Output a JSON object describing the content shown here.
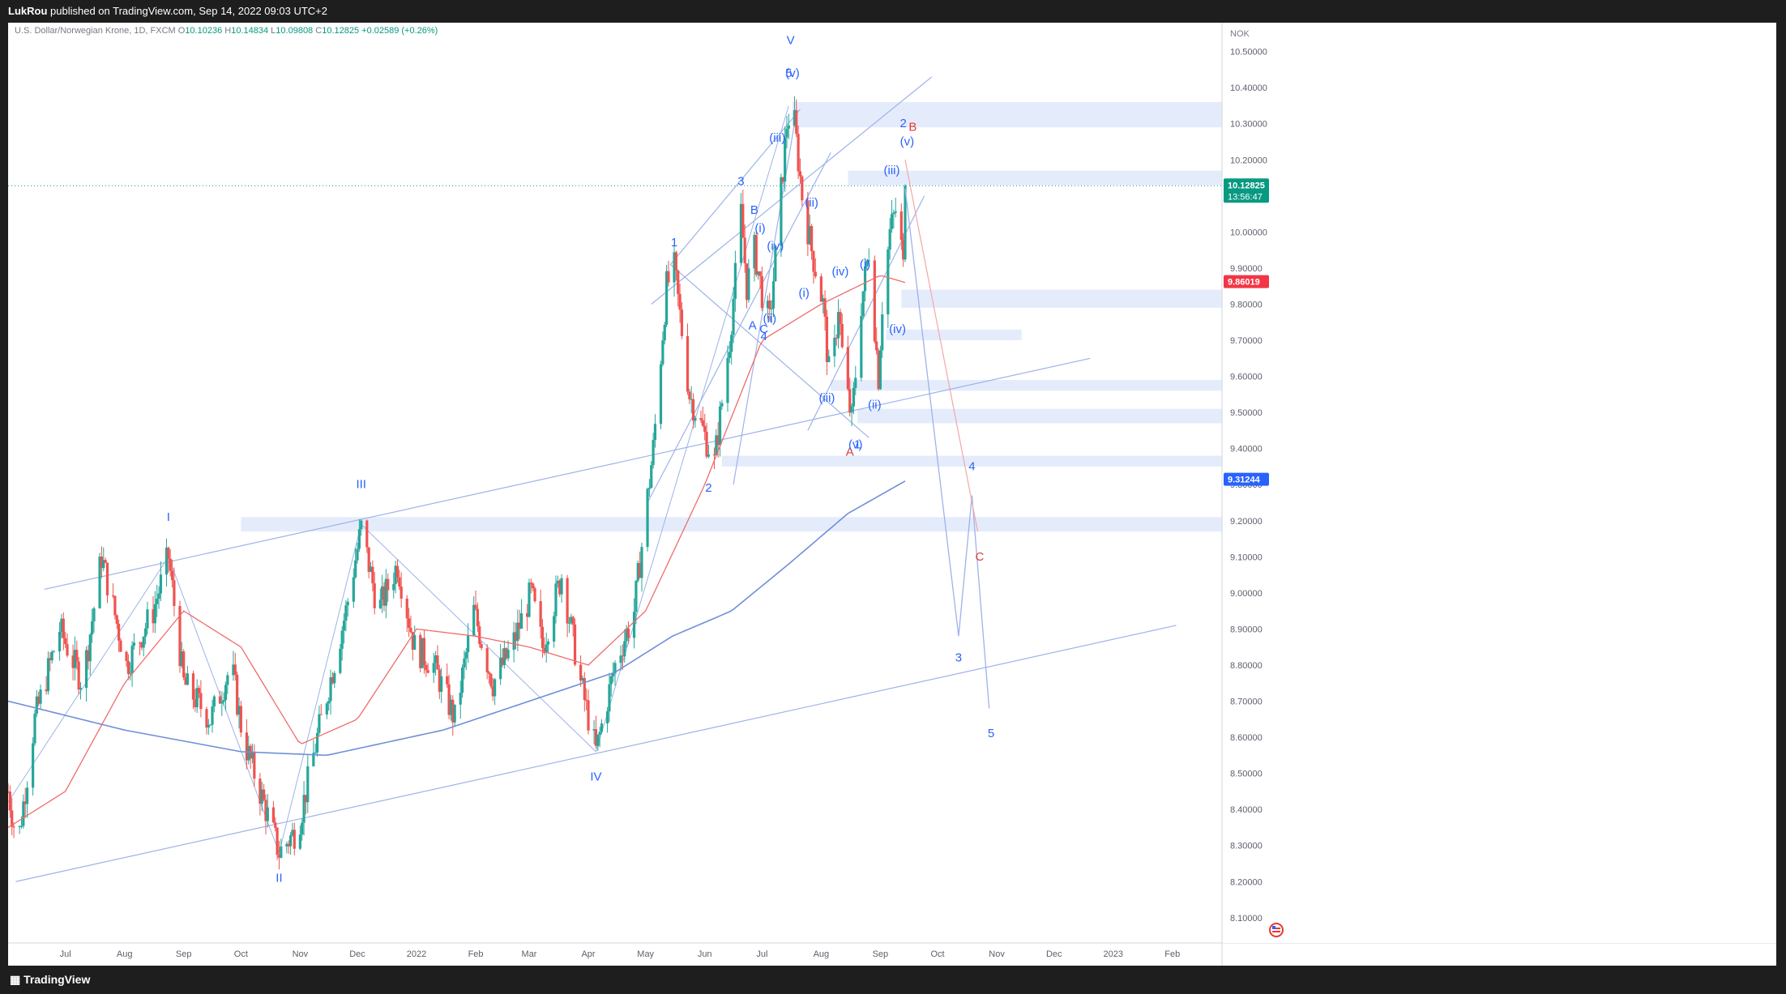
{
  "header": {
    "author": "LukRou",
    "published": "published on TradingView.com, Sep 14, 2022 09:03 UTC+2"
  },
  "legend": {
    "symbol": "U.S. Dollar/Norwegian Krone, 1D, FXCM",
    "o_label": "O",
    "o": "10.10236",
    "h_label": "H",
    "h": "10.14834",
    "l_label": "L",
    "l": "10.09808",
    "c_label": "C",
    "c": "10.12825",
    "chg": "+0.02589 (+0.26%)"
  },
  "footer": {
    "logo": "TradingView"
  },
  "colors": {
    "up": "#26a69a",
    "down": "#ef5350",
    "ma_red": "#f06b6b",
    "ma_blue": "#6f8fd8",
    "wave": "#2962ff",
    "corr": "#e53935"
  },
  "chart_data": {
    "type": "candlestick",
    "currency": "NOK",
    "ylim": [
      8.03,
      10.58
    ],
    "y_ticks": [
      "10.50000",
      "10.40000",
      "10.30000",
      "10.20000",
      "10.10000",
      "10.00000",
      "9.90000",
      "9.80000",
      "9.70000",
      "9.60000",
      "9.50000",
      "9.40000",
      "9.30000",
      "9.20000",
      "9.10000",
      "9.00000",
      "8.90000",
      "8.80000",
      "8.70000",
      "8.60000",
      "8.50000",
      "8.40000",
      "8.30000",
      "8.20000",
      "8.10000"
    ],
    "x_ticks": [
      "Jul",
      "Aug",
      "Sep",
      "Oct",
      "Nov",
      "Dec",
      "2022",
      "Feb",
      "Mar",
      "Apr",
      "May",
      "Jun",
      "Jul",
      "Aug",
      "Sep",
      "Oct",
      "Nov",
      "Dec",
      "2023",
      "Feb"
    ],
    "x_range": [
      "2021-06-01",
      "2023-02-27"
    ],
    "price_labels": [
      {
        "value": "10.12825",
        "time": "13:56:47",
        "color": "#089981"
      },
      {
        "value": "9.86019",
        "color": "#f23645"
      },
      {
        "value": "9.31244",
        "color": "#2962ff"
      }
    ],
    "price_series_anchors": [
      [
        "2021-06-01",
        8.45
      ],
      [
        "2021-06-06",
        8.3
      ],
      [
        "2021-06-15",
        8.65
      ],
      [
        "2021-06-28",
        8.9
      ],
      [
        "2021-07-10",
        8.75
      ],
      [
        "2021-07-20",
        9.1
      ],
      [
        "2021-08-02",
        8.8
      ],
      [
        "2021-08-16",
        8.95
      ],
      [
        "2021-08-24",
        9.1
      ],
      [
        "2021-09-01",
        8.75
      ],
      [
        "2021-09-15",
        8.65
      ],
      [
        "2021-09-26",
        8.8
      ],
      [
        "2021-10-02",
        8.6
      ],
      [
        "2021-10-14",
        8.4
      ],
      [
        "2021-10-21",
        8.28
      ],
      [
        "2021-10-31",
        8.35
      ],
      [
        "2021-11-10",
        8.6
      ],
      [
        "2021-11-25",
        8.95
      ],
      [
        "2021-12-03",
        9.18
      ],
      [
        "2021-12-12",
        8.95
      ],
      [
        "2021-12-22",
        9.08
      ],
      [
        "2021-12-31",
        8.85
      ],
      [
        "2022-01-10",
        8.8
      ],
      [
        "2022-01-21",
        8.65
      ],
      [
        "2022-01-31",
        8.95
      ],
      [
        "2022-02-10",
        8.75
      ],
      [
        "2022-02-20",
        8.85
      ],
      [
        "2022-03-02",
        9.0
      ],
      [
        "2022-03-08",
        8.85
      ],
      [
        "2022-03-18",
        9.05
      ],
      [
        "2022-03-28",
        8.75
      ],
      [
        "2022-04-05",
        8.56
      ],
      [
        "2022-04-15",
        8.8
      ],
      [
        "2022-04-25",
        8.95
      ],
      [
        "2022-05-05",
        9.4
      ],
      [
        "2022-05-12",
        9.85
      ],
      [
        "2022-05-16",
        9.9
      ],
      [
        "2022-05-24",
        9.55
      ],
      [
        "2022-05-31",
        9.45
      ],
      [
        "2022-06-06",
        9.36
      ],
      [
        "2022-06-14",
        9.7
      ],
      [
        "2022-06-20",
        10.05
      ],
      [
        "2022-06-23",
        9.85
      ],
      [
        "2022-06-27",
        9.95
      ],
      [
        "2022-07-02",
        9.8
      ],
      [
        "2022-07-05",
        9.75
      ],
      [
        "2022-07-10",
        10.05
      ],
      [
        "2022-07-14",
        10.3
      ],
      [
        "2022-07-17",
        10.35
      ],
      [
        "2022-07-22",
        10.1
      ],
      [
        "2022-07-27",
        9.95
      ],
      [
        "2022-08-02",
        9.8
      ],
      [
        "2022-08-06",
        9.55
      ],
      [
        "2022-08-10",
        9.8
      ],
      [
        "2022-08-13",
        9.6
      ],
      [
        "2022-08-17",
        9.48
      ],
      [
        "2022-08-22",
        9.8
      ],
      [
        "2022-08-26",
        9.95
      ],
      [
        "2022-08-31",
        9.6
      ],
      [
        "2022-09-02",
        9.8
      ],
      [
        "2022-09-06",
        10.0
      ],
      [
        "2022-09-10",
        10.08
      ],
      [
        "2022-09-13",
        9.9
      ],
      [
        "2022-09-14",
        10.12825
      ]
    ],
    "ma_red_anchors": [
      [
        "2021-06-01",
        8.35
      ],
      [
        "2021-07-01",
        8.45
      ],
      [
        "2021-08-01",
        8.75
      ],
      [
        "2021-09-01",
        8.95
      ],
      [
        "2021-10-01",
        8.85
      ],
      [
        "2021-11-01",
        8.58
      ],
      [
        "2021-12-01",
        8.65
      ],
      [
        "2022-01-01",
        8.9
      ],
      [
        "2022-02-01",
        8.88
      ],
      [
        "2022-03-01",
        8.85
      ],
      [
        "2022-04-01",
        8.8
      ],
      [
        "2022-05-01",
        8.95
      ],
      [
        "2022-06-01",
        9.3
      ],
      [
        "2022-07-01",
        9.7
      ],
      [
        "2022-08-01",
        9.8
      ],
      [
        "2022-09-01",
        9.88
      ],
      [
        "2022-09-14",
        9.86
      ]
    ],
    "ma_blue_anchors": [
      [
        "2021-06-01",
        8.7
      ],
      [
        "2021-08-01",
        8.62
      ],
      [
        "2021-10-01",
        8.56
      ],
      [
        "2021-11-15",
        8.55
      ],
      [
        "2022-01-15",
        8.62
      ],
      [
        "2022-03-01",
        8.7
      ],
      [
        "2022-04-15",
        8.78
      ],
      [
        "2022-05-15",
        8.88
      ],
      [
        "2022-06-15",
        8.95
      ],
      [
        "2022-07-15",
        9.08
      ],
      [
        "2022-08-15",
        9.22
      ],
      [
        "2022-09-14",
        9.31
      ]
    ],
    "projection": [
      [
        "2022-09-14",
        10.12
      ],
      [
        "2022-10-12",
        8.88
      ],
      [
        "2022-10-19",
        9.27
      ],
      [
        "2022-10-28",
        8.68
      ]
    ],
    "correction_projection": [
      [
        "2022-09-14",
        10.2
      ],
      [
        "2022-10-22",
        9.17
      ]
    ],
    "zones": [
      {
        "from": "2022-07-17",
        "to": "2023-02-27",
        "low": 10.29,
        "high": 10.36
      },
      {
        "from": "2022-08-15",
        "to": "2023-02-27",
        "low": 10.13,
        "high": 10.17
      },
      {
        "from": "2022-09-12",
        "to": "2023-02-27",
        "low": 9.79,
        "high": 9.84
      },
      {
        "from": "2022-09-04",
        "to": "2022-11-14",
        "low": 9.7,
        "high": 9.73
      },
      {
        "from": "2022-08-06",
        "to": "2023-02-27",
        "low": 9.56,
        "high": 9.59
      },
      {
        "from": "2022-08-20",
        "to": "2023-02-27",
        "low": 9.47,
        "high": 9.51
      },
      {
        "from": "2022-06-10",
        "to": "2023-02-27",
        "low": 9.35,
        "high": 9.38
      },
      {
        "from": "2021-10-01",
        "to": "2023-02-27",
        "low": 9.17,
        "high": 9.21
      }
    ],
    "trend_lines": [
      [
        [
          "2021-06-05",
          8.2
        ],
        [
          "2023-02-03",
          8.91
        ]
      ],
      [
        [
          "2021-06-20",
          9.01
        ],
        [
          "2022-12-20",
          9.65
        ]
      ],
      [
        [
          "2022-05-14",
          9.91
        ],
        [
          "2022-08-26",
          9.43
        ]
      ],
      [
        [
          "2022-05-04",
          9.8
        ],
        [
          "2022-09-28",
          10.43
        ]
      ],
      [
        [
          "2022-07-25",
          9.45
        ],
        [
          "2022-09-24",
          10.1
        ]
      ],
      [
        [
          "2022-05-02",
          9.25
        ],
        [
          "2022-08-06",
          10.22
        ]
      ],
      [
        [
          "2022-06-16",
          9.3
        ],
        [
          "2022-07-18",
          10.3
        ]
      ],
      [
        [
          "2022-05-14",
          9.91
        ],
        [
          "2022-07-21",
          10.34
        ]
      ]
    ],
    "wave_path": [
      [
        "2021-06-01",
        8.42
      ],
      [
        "2021-08-24",
        9.1
      ],
      [
        "2021-10-21",
        8.28
      ],
      [
        "2021-12-03",
        9.19
      ],
      [
        "2022-04-05",
        8.56
      ],
      [
        "2022-07-15",
        10.35
      ]
    ],
    "wave_labels": [
      {
        "text": "I",
        "date": "2021-08-24",
        "price": 9.2,
        "color": "#2962ff"
      },
      {
        "text": "II",
        "date": "2021-10-21",
        "price": 8.2,
        "color": "#2962ff"
      },
      {
        "text": "III",
        "date": "2021-12-03",
        "price": 9.29,
        "color": "#2962ff"
      },
      {
        "text": "IV",
        "date": "2022-04-05",
        "price": 8.48,
        "color": "#2962ff"
      },
      {
        "text": "V",
        "date": "2022-07-16",
        "price": 10.52,
        "color": "#2962ff"
      },
      {
        "text": "1",
        "date": "2022-05-16",
        "price": 9.96,
        "color": "#2962ff"
      },
      {
        "text": "2",
        "date": "2022-06-03",
        "price": 9.28,
        "color": "#2962ff"
      },
      {
        "text": "3",
        "date": "2022-06-20",
        "price": 10.13,
        "color": "#2962ff"
      },
      {
        "text": "4",
        "date": "2022-07-02",
        "price": 9.7,
        "color": "#2962ff"
      },
      {
        "text": "5",
        "date": "2022-07-15",
        "price": 10.43,
        "color": "#2962ff"
      },
      {
        "text": "(v)",
        "date": "2022-07-17",
        "price": 10.43,
        "color": "#2962ff"
      },
      {
        "text": "A",
        "date": "2022-06-26",
        "price": 9.73,
        "color": "#2962ff"
      },
      {
        "text": "B",
        "date": "2022-06-27",
        "price": 10.05,
        "color": "#2962ff"
      },
      {
        "text": "C",
        "date": "2022-07-02",
        "price": 9.72,
        "color": "#2962ff"
      },
      {
        "text": "(i)",
        "date": "2022-06-30",
        "price": 10.0,
        "color": "#2962ff"
      },
      {
        "text": "(ii)",
        "date": "2022-07-05",
        "price": 9.75,
        "color": "#2962ff"
      },
      {
        "text": "(iii)",
        "date": "2022-07-09",
        "price": 10.25,
        "color": "#2962ff"
      },
      {
        "text": "(iv)",
        "date": "2022-07-08",
        "price": 9.95,
        "color": "#2962ff"
      },
      {
        "text": "(ii)",
        "date": "2022-07-27",
        "price": 10.07,
        "color": "#2962ff"
      },
      {
        "text": "(i)",
        "date": "2022-07-23",
        "price": 9.82,
        "color": "#2962ff"
      },
      {
        "text": "(iv)",
        "date": "2022-08-11",
        "price": 9.88,
        "color": "#2962ff"
      },
      {
        "text": "(iii)",
        "date": "2022-08-04",
        "price": 9.53,
        "color": "#2962ff"
      },
      {
        "text": "A",
        "date": "2022-08-16",
        "price": 9.38,
        "color": "#e53935"
      },
      {
        "text": "(v)",
        "date": "2022-08-19",
        "price": 9.4,
        "color": "#2962ff"
      },
      {
        "text": "1",
        "date": "2022-08-20",
        "price": 9.4,
        "color": "#2962ff"
      },
      {
        "text": "(i)",
        "date": "2022-08-24",
        "price": 9.9,
        "color": "#2962ff"
      },
      {
        "text": "(ii)",
        "date": "2022-08-29",
        "price": 9.51,
        "color": "#2962ff"
      },
      {
        "text": "(iii)",
        "date": "2022-09-07",
        "price": 10.16,
        "color": "#2962ff"
      },
      {
        "text": "(iv)",
        "date": "2022-09-10",
        "price": 9.72,
        "color": "#2962ff"
      },
      {
        "text": "2",
        "date": "2022-09-13",
        "price": 10.29,
        "color": "#2962ff"
      },
      {
        "text": "(v)",
        "date": "2022-09-15",
        "price": 10.24,
        "color": "#2962ff"
      },
      {
        "text": "B",
        "date": "2022-09-18",
        "price": 10.28,
        "color": "#e53935"
      },
      {
        "text": "3",
        "date": "2022-10-12",
        "price": 8.81,
        "color": "#2962ff"
      },
      {
        "text": "4",
        "date": "2022-10-19",
        "price": 9.34,
        "color": "#2962ff"
      },
      {
        "text": "5",
        "date": "2022-10-29",
        "price": 8.6,
        "color": "#2962ff"
      },
      {
        "text": "C",
        "date": "2022-10-23",
        "price": 9.09,
        "color": "#e53935"
      }
    ]
  }
}
